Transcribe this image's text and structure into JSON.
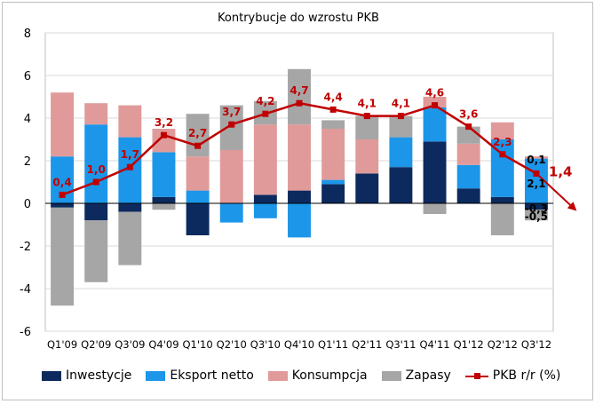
{
  "chart_data": {
    "type": "bar",
    "stacked": true,
    "title": "Kontrybucje do wzrostu PKB",
    "categories": [
      "Q1'09",
      "Q2'09",
      "Q3'09",
      "Q4'09",
      "Q1'10",
      "Q2'10",
      "Q3'10",
      "Q4'10",
      "Q1'11",
      "Q2'11",
      "Q3'11",
      "Q4'11",
      "Q1'12",
      "Q2'12",
      "Q3'12"
    ],
    "ylim": [
      -6,
      8
    ],
    "yticks": [
      -6,
      -4,
      -2,
      0,
      2,
      4,
      6,
      8
    ],
    "grid": true,
    "legend_position": "bottom",
    "series": [
      {
        "name": "Inwestycje",
        "color": "#0d2a5e",
        "values": [
          -0.2,
          -0.8,
          -0.4,
          0.3,
          -1.5,
          0.0,
          0.4,
          0.6,
          0.9,
          1.4,
          1.7,
          2.9,
          0.7,
          0.3,
          -0.3
        ]
      },
      {
        "name": "Eksport netto",
        "color": "#1c96e8",
        "values": [
          2.2,
          3.7,
          3.1,
          2.1,
          0.6,
          -0.9,
          -0.7,
          -1.6,
          0.2,
          0.0,
          1.4,
          1.6,
          1.1,
          2.7,
          2.1
        ]
      },
      {
        "name": "Konsumpcja",
        "color": "#e09a9a",
        "values": [
          3.0,
          1.0,
          1.5,
          1.1,
          1.6,
          2.5,
          3.3,
          3.1,
          2.4,
          1.6,
          0.0,
          0.5,
          1.0,
          0.8,
          0.1
        ]
      },
      {
        "name": "Zapasy",
        "color": "#a6a6a6",
        "values": [
          -4.6,
          -2.9,
          -2.5,
          -0.3,
          2.0,
          2.1,
          1.1,
          2.6,
          0.4,
          1.1,
          1.0,
          -0.5,
          0.8,
          -1.5,
          -0.5
        ]
      }
    ],
    "line": {
      "name": "PKB r/r (%)",
      "color": "#c00000",
      "values": [
        0.4,
        1.0,
        1.7,
        3.2,
        2.7,
        3.7,
        4.2,
        4.7,
        4.4,
        4.1,
        4.1,
        4.6,
        3.6,
        2.3,
        1.4
      ],
      "labels": [
        "0,4",
        "1,0",
        "1,7",
        "3,2",
        "2,7",
        "3,7",
        "4,2",
        "4,7",
        "4,4",
        "4,1",
        "4,1",
        "4,6",
        "3,6",
        "2,3",
        "1,4"
      ]
    },
    "annotations": [
      "0,1",
      "2,1",
      "-0,3",
      "-0,5"
    ]
  }
}
